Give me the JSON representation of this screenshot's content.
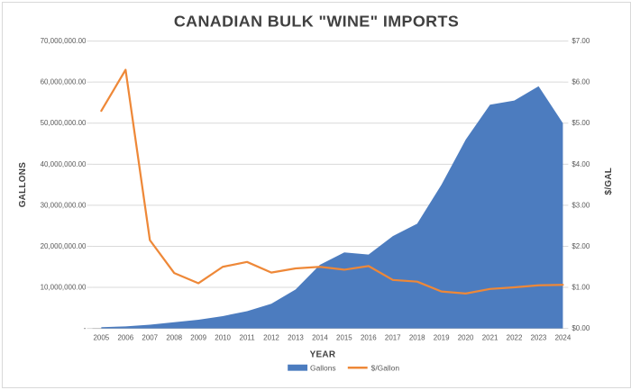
{
  "title": "CANADIAN BULK \"WINE\" IMPORTS",
  "chart_data": {
    "type": "combo-area-line",
    "title": "CANADIAN BULK \"WINE\" IMPORTS",
    "categories": [
      "2005",
      "2006",
      "2007",
      "2008",
      "2009",
      "2010",
      "2011",
      "2012",
      "2013",
      "2014",
      "2015",
      "2016",
      "2017",
      "2018",
      "2019",
      "2020",
      "2021",
      "2022",
      "2023",
      "2024"
    ],
    "series": [
      {
        "name": "Gallons",
        "type": "area",
        "axis": "left",
        "color": "#4C7CBF",
        "values": [
          300000,
          500000,
          900000,
          1500000,
          2100000,
          3000000,
          4200000,
          6000000,
          9500000,
          15500000,
          18500000,
          18000000,
          22500000,
          25500000,
          35000000,
          46000000,
          54500000,
          55500000,
          59000000,
          50000000
        ]
      },
      {
        "name": "$/Gallon",
        "type": "line",
        "axis": "right",
        "color": "#EE8838",
        "values": [
          5.3,
          6.3,
          2.15,
          1.35,
          1.1,
          1.5,
          1.62,
          1.36,
          1.46,
          1.5,
          1.43,
          1.52,
          1.18,
          1.14,
          0.9,
          0.85,
          0.96,
          1.0,
          1.05,
          1.06
        ]
      }
    ],
    "left_axis": {
      "title": "GALLONS",
      "min": 0,
      "max": 70000000,
      "tick_interval": 10000000,
      "tick_labels_bottom_to_top": [
        "-",
        "10,000,000.00",
        "20,000,000.00",
        "30,000,000.00",
        "40,000,000.00",
        "50,000,000.00",
        "60,000,000.00",
        "70,000,000.00"
      ]
    },
    "right_axis": {
      "title": "$/GAL",
      "min": 0,
      "max": 7,
      "tick_interval": 1,
      "tick_labels_bottom_to_top": [
        "$0.00",
        "$1.00",
        "$2.00",
        "$3.00",
        "$4.00",
        "$5.00",
        "$6.00",
        "$7.00"
      ]
    },
    "x_axis": {
      "title": "YEAR"
    },
    "legend": {
      "position": "bottom",
      "entries": [
        "Gallons",
        "$/Gallon"
      ]
    },
    "grid": {
      "horizontal": true,
      "color": "#d9d9d9",
      "axis_line_color": "#bfbfbf"
    }
  }
}
